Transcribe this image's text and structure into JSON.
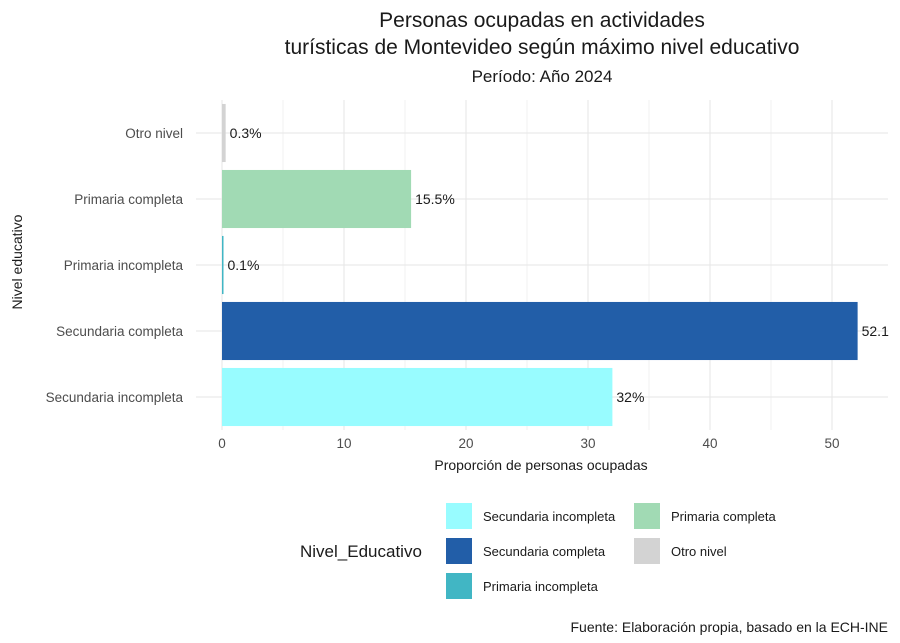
{
  "chart_data": {
    "type": "bar",
    "orientation": "horizontal",
    "title_lines": [
      "Personas ocupadas en actividades",
      "turísticas de Montevideo según máximo nivel educativo"
    ],
    "subtitle": "Período: Año 2024",
    "xlabel": "Proporción de personas ocupadas",
    "ylabel": "Nivel educativo",
    "xlim": [
      0,
      54
    ],
    "x_ticks": [
      0,
      10,
      20,
      30,
      40,
      50
    ],
    "grid": true,
    "categories": [
      "Otro nivel",
      "Primaria completa",
      "Primaria incompleta",
      "Secundaria completa",
      "Secundaria incompleta"
    ],
    "values": [
      0.3,
      15.5,
      0.1,
      52.1,
      32
    ],
    "data_labels": [
      "0.3%",
      "15.5%",
      "0.1%",
      "52.1",
      "32%"
    ],
    "colors": [
      "#d3d3d3",
      "#a1dab4",
      "#41b6c4",
      "#225ea8",
      "#98fcff"
    ],
    "legend": {
      "title": "Nivel_Educativo",
      "placement": "bottom",
      "items": [
        {
          "label": "Secundaria incompleta",
          "color": "#98fcff"
        },
        {
          "label": "Secundaria completa",
          "color": "#225ea8"
        },
        {
          "label": "Primaria incompleta",
          "color": "#41b6c4"
        },
        {
          "label": "Primaria completa",
          "color": "#a1dab4"
        },
        {
          "label": "Otro nivel",
          "color": "#d3d3d3"
        }
      ]
    },
    "caption": "Fuente: Elaboración propia, basado en la ECH-INE"
  }
}
